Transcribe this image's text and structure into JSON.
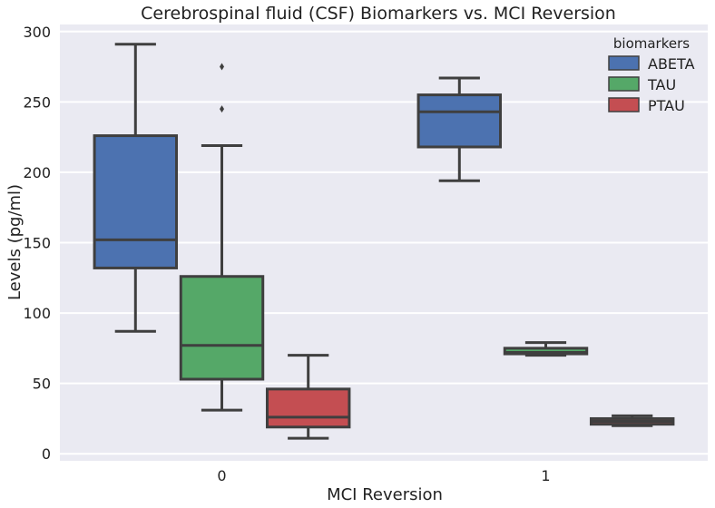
{
  "chart_data": {
    "type": "box",
    "title": "Cerebrospinal fluid (CSF) Biomarkers vs. MCI Reversion",
    "xlabel": "MCI Reversion",
    "ylabel": "Levels (pg/ml)",
    "categories": [
      "0",
      "1"
    ],
    "ylim": [
      -5,
      305
    ],
    "yticks": [
      0,
      50,
      100,
      150,
      200,
      250,
      300
    ],
    "grid": true,
    "legend": {
      "title": "biomarkers",
      "position": "top-right"
    },
    "series": [
      {
        "name": "ABETA",
        "color": "#4c72b0",
        "boxes": [
          {
            "category": "0",
            "whisker_low": 87,
            "q1": 132,
            "median": 152,
            "q3": 226,
            "whisker_high": 291,
            "outliers": []
          },
          {
            "category": "1",
            "whisker_low": 194,
            "q1": 218,
            "median": 243,
            "q3": 255,
            "whisker_high": 267,
            "outliers": []
          }
        ]
      },
      {
        "name": "TAU",
        "color": "#55a868",
        "boxes": [
          {
            "category": "0",
            "whisker_low": 31,
            "q1": 53,
            "median": 77,
            "q3": 126,
            "whisker_high": 219,
            "outliers": [
              245,
              275
            ]
          },
          {
            "category": "1",
            "whisker_low": 70,
            "q1": 71,
            "median": 72,
            "q3": 75,
            "whisker_high": 79,
            "outliers": []
          }
        ]
      },
      {
        "name": "PTAU",
        "color": "#c44e52",
        "boxes": [
          {
            "category": "0",
            "whisker_low": 11,
            "q1": 19,
            "median": 26,
            "q3": 46,
            "whisker_high": 70,
            "outliers": []
          },
          {
            "category": "1",
            "whisker_low": 20,
            "q1": 21,
            "median": 23,
            "q3": 25,
            "whisker_high": 27,
            "outliers": []
          }
        ]
      }
    ]
  }
}
